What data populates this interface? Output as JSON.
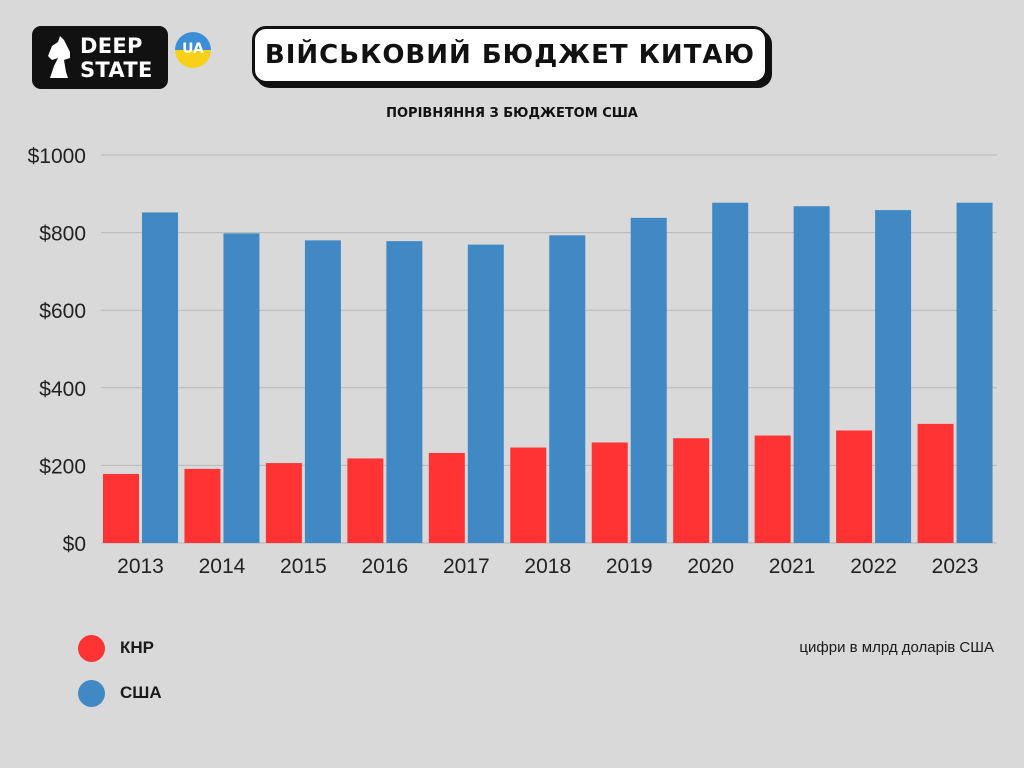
{
  "logo": {
    "line1": "DEEP",
    "line2": "STATE",
    "badge": "UA"
  },
  "chart_data": {
    "type": "bar",
    "title": "ВІЙСЬКОВИЙ БЮДЖЕТ КИТАЮ",
    "subtitle": "ПОРІВНЯННЯ З БЮДЖЕТОМ США",
    "categories": [
      "2013",
      "2014",
      "2015",
      "2016",
      "2017",
      "2018",
      "2019",
      "2020",
      "2021",
      "2022",
      "2023"
    ],
    "series": [
      {
        "name": "КНР",
        "color": "#ff3333",
        "values": [
          178,
          191,
          206,
          218,
          232,
          246,
          259,
          270,
          277,
          290,
          307
        ]
      },
      {
        "name": "США",
        "color": "#4189c4",
        "values": [
          852,
          798,
          780,
          778,
          769,
          793,
          838,
          877,
          868,
          858,
          877
        ]
      }
    ],
    "y_ticks": [
      "$0",
      "$200",
      "$400",
      "$600",
      "$800",
      "$1000"
    ],
    "ylim": [
      0,
      1000
    ],
    "grid": true,
    "legend_position": "bottom-left",
    "note": "цифри в млрд доларів США"
  }
}
